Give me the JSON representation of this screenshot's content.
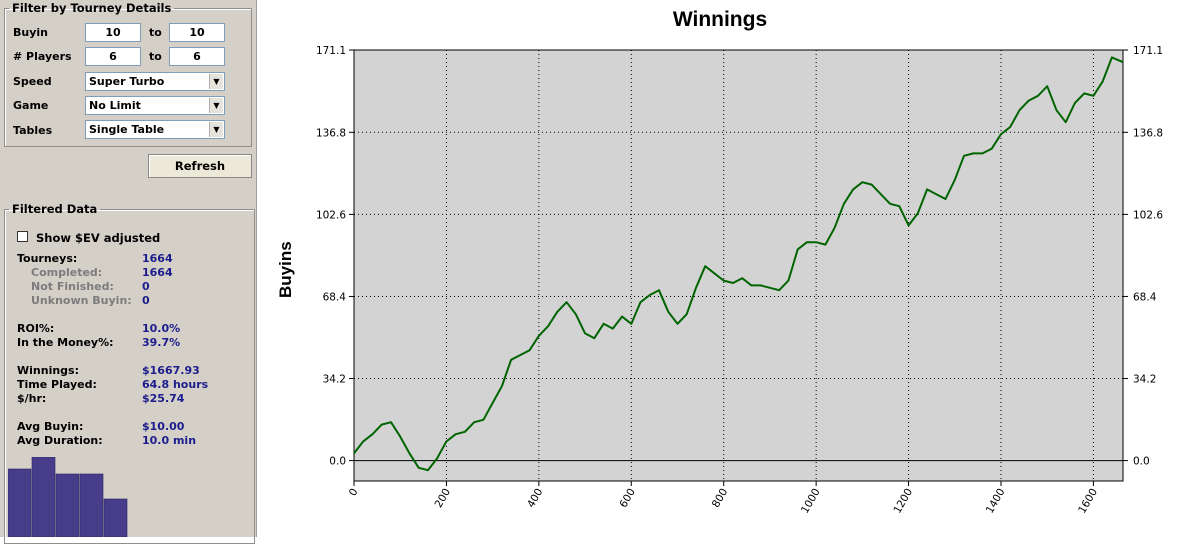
{
  "filter": {
    "legend": "Filter by Tourney Details",
    "buyin_label": "Buyin",
    "buyin_from": "10",
    "buyin_to": "10",
    "players_label": "# Players",
    "players_from": "6",
    "players_to": "6",
    "to_label": "to",
    "speed_label": "Speed",
    "speed_value": "Super Turbo",
    "game_label": "Game",
    "game_value": "No Limit",
    "tables_label": "Tables",
    "tables_value": "Single Table",
    "refresh_label": "Refresh"
  },
  "filtered": {
    "legend": "Filtered Data",
    "ev_label": "Show $EV adjusted",
    "tourneys_label": "Tourneys:",
    "tourneys": "1664",
    "completed_label": "Completed:",
    "completed": "1664",
    "not_finished_label": "Not Finished:",
    "not_finished": "0",
    "unknown_label": "Unknown Buyin:",
    "unknown": "0",
    "roi_label": "ROI%:",
    "roi": "10.0%",
    "itm_label": "In the Money%:",
    "itm": "39.7%",
    "winnings_label": "Winnings:",
    "winnings": "$1667.93",
    "time_label": "Time Played:",
    "time": "64.8 hours",
    "hourly_label": "$/hr:",
    "hourly": "$25.74",
    "avg_buyin_label": "Avg Buyin:",
    "avg_buyin": "$10.00",
    "avg_dur_label": "Avg Duration:",
    "avg_dur": "10.0 min",
    "histogram_values": [
      0.68,
      0.8,
      0.63,
      0.63,
      0.38
    ],
    "histogram_color": "#483d8b"
  },
  "chart_data": {
    "type": "line",
    "title": "Winnings",
    "ylabel": "Buyins",
    "xlabel": "",
    "xlim": [
      0,
      1664
    ],
    "ylim": [
      -8.5,
      171.1
    ],
    "y_ticks": [
      "171.1",
      "136.8",
      "102.6",
      "68.4",
      "34.2",
      "0.0"
    ],
    "y_tick_values": [
      171.1,
      136.8,
      102.6,
      68.4,
      34.2,
      0.0
    ],
    "x_ticks": [
      "0",
      "200",
      "400",
      "600",
      "800",
      "1000",
      "1200",
      "1400",
      "1600"
    ],
    "x_tick_values": [
      0,
      200,
      400,
      600,
      800,
      1000,
      1200,
      1400,
      1600
    ],
    "grid": true,
    "line_color": "#006400",
    "plot_bg": "#d3d3d3",
    "series": [
      {
        "x": [
          0,
          20,
          40,
          60,
          80,
          100,
          120,
          140,
          160,
          180,
          200,
          220,
          240,
          260,
          280,
          300,
          320,
          340,
          360,
          380,
          400,
          420,
          440,
          460,
          480,
          500,
          520,
          540,
          560,
          580,
          600,
          620,
          640,
          660,
          680,
          700,
          720,
          740,
          760,
          780,
          800,
          820,
          840,
          860,
          880,
          900,
          920,
          940,
          960,
          980,
          1000,
          1020,
          1040,
          1060,
          1080,
          1100,
          1120,
          1140,
          1160,
          1180,
          1200,
          1220,
          1240,
          1260,
          1280,
          1300,
          1320,
          1340,
          1360,
          1380,
          1400,
          1420,
          1440,
          1460,
          1480,
          1500,
          1520,
          1540,
          1560,
          1580,
          1600,
          1620,
          1640,
          1664
        ],
        "y": [
          3,
          8,
          11,
          15,
          16,
          10,
          3,
          -3,
          -4,
          1,
          8,
          11,
          12,
          16,
          17,
          24,
          31,
          42,
          44,
          46,
          52,
          56,
          62,
          66,
          61,
          53,
          51,
          57,
          55,
          60,
          57,
          66,
          69,
          71,
          62,
          57,
          61,
          72,
          81,
          78,
          75,
          74,
          76,
          73,
          73,
          72,
          71,
          75,
          88,
          91,
          91,
          90,
          97,
          107,
          113,
          116,
          115,
          111,
          107,
          106,
          98,
          103,
          113,
          111,
          109,
          117,
          127,
          128,
          128,
          130,
          136,
          139,
          146,
          150,
          152,
          156,
          146,
          141,
          149,
          153,
          152,
          158,
          168,
          166
        ]
      }
    ]
  }
}
